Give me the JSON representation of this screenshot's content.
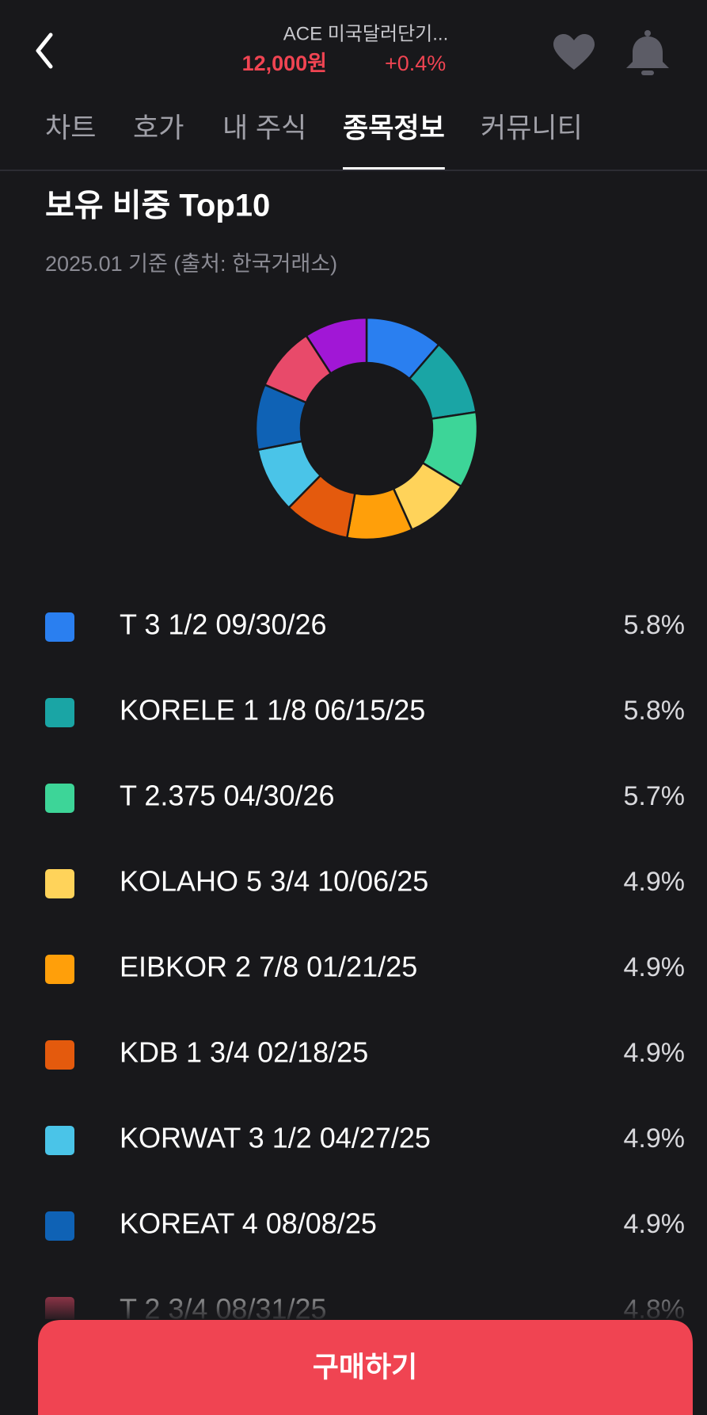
{
  "header": {
    "title": "ACE 미국달러단기...",
    "price": "12,000원",
    "change": "+0.4%"
  },
  "tabs": [
    "차트",
    "호가",
    "내 주식",
    "종목정보",
    "커뮤니티"
  ],
  "active_tab": 3,
  "section": {
    "title": "보유 비중 Top10",
    "subtitle": "2025.01 기준 (출처: 한국거래소)"
  },
  "chart_data": {
    "type": "donut",
    "categories": [
      "T 3 1/2 09/30/26",
      "KORELE 1 1/8 06/15/25",
      "T 2.375 04/30/26",
      "KOLAHO 5 3/4 10/06/25",
      "EIBKOR 2 7/8 01/21/25",
      "KDB 1 3/4 02/18/25",
      "KORWAT 3 1/2 04/27/25",
      "KOREAT 4 08/08/25",
      "T 2 3/4 08/31/25",
      null
    ],
    "values": [
      5.8,
      5.8,
      5.7,
      4.9,
      4.9,
      4.9,
      4.9,
      4.9,
      4.8,
      4.7
    ],
    "value_labels": [
      "5.8%",
      "5.8%",
      "5.7%",
      "4.9%",
      "4.9%",
      "4.9%",
      "4.9%",
      "4.9%",
      "4.8%",
      null
    ],
    "colors": [
      "#2a7ff0",
      "#1aa5a5",
      "#3dd598",
      "#ffd35a",
      "#ff9f0a",
      "#e45a0d",
      "#4ac4e8",
      "#0f62b5",
      "#e84a6a",
      "#a117d6"
    ]
  },
  "button": {
    "label": "구매하기"
  }
}
